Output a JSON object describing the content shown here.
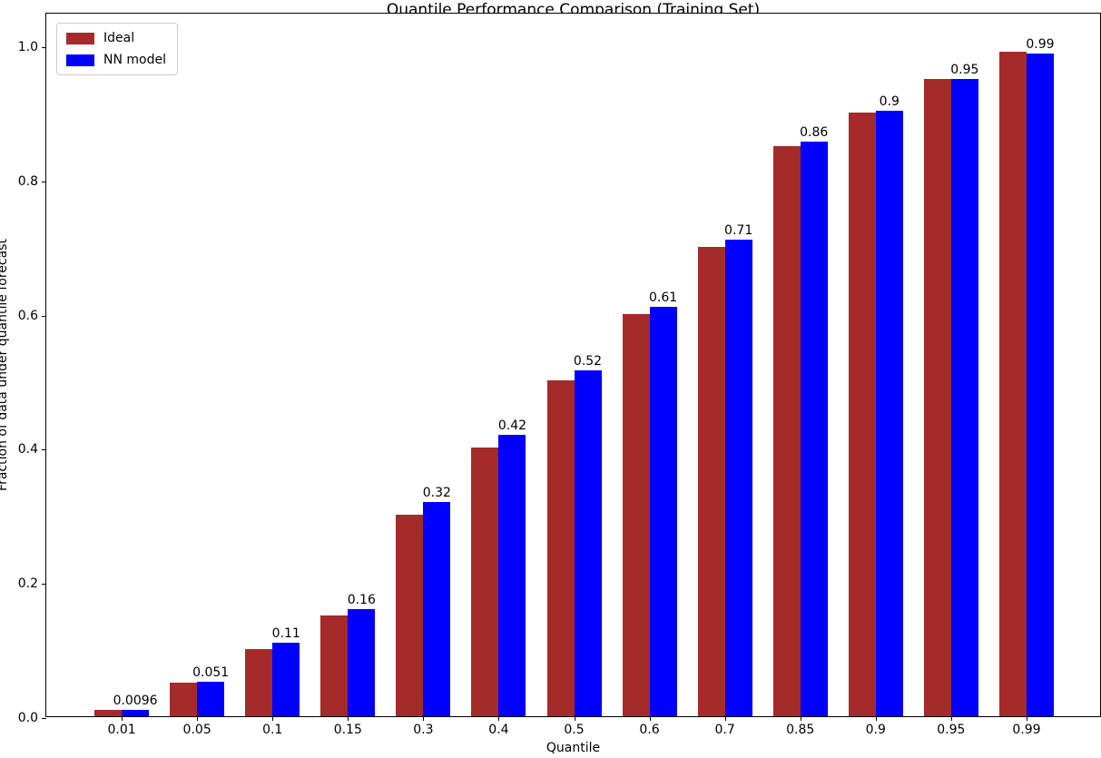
{
  "title": "Quantile Performance Comparison (Training Set)",
  "chart_data": {
    "type": "bar",
    "title": "Quantile Performance Comparison (Training Set)",
    "xlabel": "Quantile",
    "ylabel": "Fraction of data under quantile forecast",
    "categories": [
      "0.01",
      "0.05",
      "0.1",
      "0.15",
      "0.3",
      "0.4",
      "0.5",
      "0.6",
      "0.7",
      "0.85",
      "0.9",
      "0.95",
      "0.99"
    ],
    "series": [
      {
        "name": "Ideal",
        "color": "#A52A2A",
        "values": [
          0.01,
          0.05,
          0.1,
          0.15,
          0.3,
          0.4,
          0.5,
          0.6,
          0.7,
          0.85,
          0.9,
          0.95,
          0.99
        ]
      },
      {
        "name": "NN model",
        "color": "#0000FF",
        "values": [
          0.0096,
          0.051,
          0.11,
          0.16,
          0.32,
          0.42,
          0.515,
          0.61,
          0.71,
          0.857,
          0.903,
          0.95,
          0.988
        ]
      }
    ],
    "bar_labels": [
      "0.0096",
      "0.051",
      "0.11",
      "0.16",
      "0.32",
      "0.42",
      "0.52",
      "0.61",
      "0.71",
      "0.86",
      "0.9",
      "0.95",
      "0.99"
    ],
    "ylim": [
      0.0,
      1.05
    ],
    "yticks": [
      "0.0",
      "0.2",
      "0.4",
      "0.6",
      "0.8",
      "1.0"
    ],
    "grid": false,
    "legend_position": "upper left"
  }
}
